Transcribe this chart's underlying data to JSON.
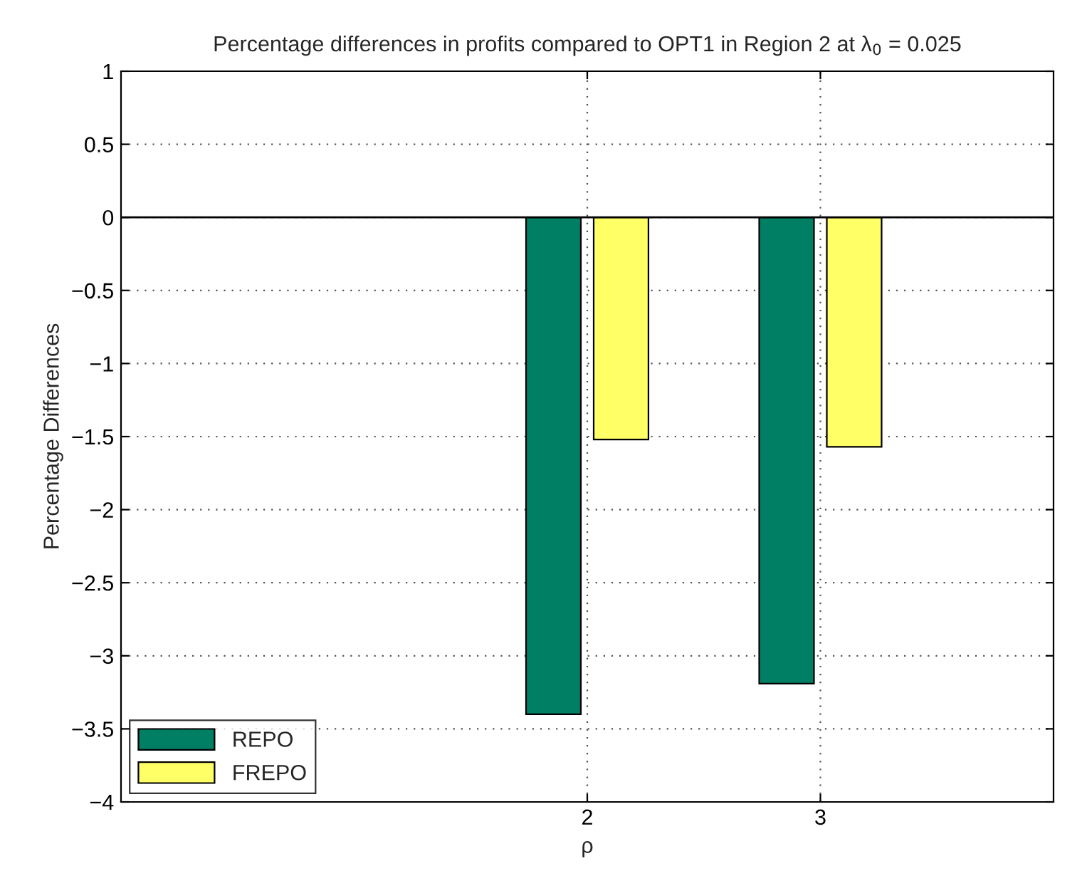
{
  "chart_data": {
    "type": "bar",
    "title": "Percentage differences in profits compared to OPT1 in Region 2 at λ$_{0}$ = 0.025",
    "xlabel": "ρ",
    "ylabel": "Percentage Differences",
    "x": [
      2,
      3
    ],
    "series": [
      {
        "name": "REPO",
        "color": "#007f64",
        "values": [
          -3.4,
          -3.19
        ]
      },
      {
        "name": "FREPO",
        "color": "#ffff66",
        "values": [
          -1.52,
          -1.57
        ]
      }
    ],
    "xlim": [
      0,
      4
    ],
    "xticks": [
      2,
      3
    ],
    "ylim": [
      -4,
      1
    ],
    "yticks": [
      -4,
      -3.5,
      -3,
      -2.5,
      -2,
      -1.5,
      -1,
      -0.5,
      0,
      0.5,
      1
    ],
    "ref_lines": [
      {
        "axis": "y",
        "value": 0,
        "label": null,
        "color": "#000000"
      }
    ],
    "grid": true,
    "legend": "bottom left"
  }
}
